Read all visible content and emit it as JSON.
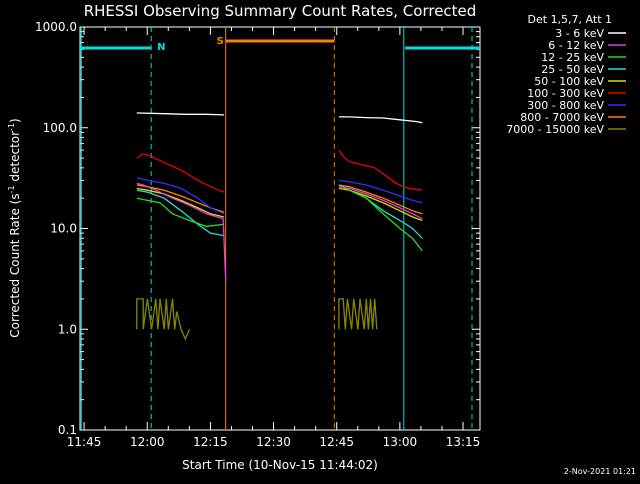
{
  "chart_data": {
    "type": "line",
    "title": "RHESSI Observing Summary Count Rates, Corrected",
    "ylabel_main": "Corrected Count Rate (s",
    "ylabel_sup": "-1",
    "ylabel_mid": " detector",
    "ylabel_sup2": "-1",
    "ylabel_end": ")",
    "xlabel": "Start Time (10-Nov-15 11:44:02)",
    "footer": "2-Nov-2021 01:21",
    "y_scale": "log",
    "ylim": [
      0.1,
      1000
    ],
    "xlim_minutes": [
      0,
      95
    ],
    "x_ticks": [
      {
        "m": 0.97,
        "label": "11:45"
      },
      {
        "m": 15.97,
        "label": "12:00"
      },
      {
        "m": 30.97,
        "label": "12:15"
      },
      {
        "m": 45.97,
        "label": "12:30"
      },
      {
        "m": 60.97,
        "label": "12:45"
      },
      {
        "m": 75.97,
        "label": "13:00"
      },
      {
        "m": 90.97,
        "label": "13:15"
      }
    ],
    "y_ticks": [
      {
        "v": 1000,
        "label": "1000.0"
      },
      {
        "v": 100,
        "label": "100.0"
      },
      {
        "v": 10,
        "label": "10.0"
      },
      {
        "v": 1,
        "label": "1.0"
      },
      {
        "v": 0.1,
        "label": "0.1"
      }
    ],
    "legend_header": "Det 1,5,7, Att 1",
    "series": [
      {
        "name": "3 - 6 keV",
        "color": "#ffffff",
        "segments": [
          [
            [
              13.5,
              140
            ],
            [
              14,
              140
            ],
            [
              20,
              138
            ],
            [
              25,
              136
            ],
            [
              30,
              136
            ],
            [
              34.2,
              134
            ]
          ],
          [
            [
              61.5,
              128
            ],
            [
              64,
              128
            ],
            [
              68,
              126
            ],
            [
              72,
              125
            ],
            [
              76,
              120
            ],
            [
              80,
              115
            ],
            [
              81.3,
              112
            ]
          ]
        ]
      },
      {
        "name": "6 - 12 keV",
        "color": "#e040e0",
        "segments": [
          [
            [
              13.5,
              28
            ],
            [
              15,
              27
            ],
            [
              18,
              24
            ],
            [
              22,
              20
            ],
            [
              26,
              17
            ],
            [
              30,
              14
            ],
            [
              34,
              12.5
            ],
            [
              34.6,
              3
            ]
          ],
          [
            [
              61.5,
              26
            ],
            [
              64,
              25
            ],
            [
              68,
              22
            ],
            [
              72,
              19
            ],
            [
              76,
              16
            ],
            [
              79,
              14
            ],
            [
              81.3,
              12.5
            ]
          ]
        ]
      },
      {
        "name": "12 - 25 keV",
        "color": "#20e020",
        "segments": [
          [
            [
              13.5,
              20
            ],
            [
              16,
              19
            ],
            [
              19,
              18
            ],
            [
              22,
              14
            ],
            [
              26,
              12
            ],
            [
              30,
              10.5
            ],
            [
              34.2,
              11
            ]
          ],
          [
            [
              61.5,
              27
            ],
            [
              64,
              24
            ],
            [
              68,
              20
            ],
            [
              72,
              14
            ],
            [
              76,
              10
            ],
            [
              79,
              8
            ],
            [
              81.3,
              6
            ]
          ]
        ]
      },
      {
        "name": "25 - 50 keV",
        "color": "#20e0e0",
        "segments": [
          [
            [
              13.5,
              24
            ],
            [
              16,
              23
            ],
            [
              20,
              20
            ],
            [
              24,
              15
            ],
            [
              28,
              11
            ],
            [
              31,
              9
            ],
            [
              34.2,
              8.5
            ]
          ],
          [
            [
              61.5,
              27
            ],
            [
              64,
              24
            ],
            [
              68,
              20
            ],
            [
              72,
              15
            ],
            [
              76,
              12
            ],
            [
              79,
              10
            ],
            [
              81.3,
              8
            ]
          ]
        ]
      },
      {
        "name": "50 - 100 keV",
        "color": "#e0e000",
        "segments": [
          [
            [
              13.5,
              25
            ],
            [
              16,
              24
            ],
            [
              20,
              22
            ],
            [
              24,
              19
            ],
            [
              28,
              16
            ],
            [
              31,
              14
            ],
            [
              34.2,
              13
            ]
          ],
          [
            [
              61.5,
              25
            ],
            [
              64,
              24
            ],
            [
              68,
              21
            ],
            [
              72,
              18
            ],
            [
              76,
              15
            ],
            [
              79,
              13
            ],
            [
              81.3,
              12
            ]
          ]
        ]
      },
      {
        "name": "100 - 300 keV",
        "color": "#ee0000",
        "segments": [
          [
            [
              13.5,
              50
            ],
            [
              15,
              55
            ],
            [
              17,
              52
            ],
            [
              20,
              45
            ],
            [
              24,
              38
            ],
            [
              28,
              30
            ],
            [
              31,
              26
            ],
            [
              33,
              24
            ],
            [
              34.2,
              23
            ]
          ],
          [
            [
              61.5,
              60
            ],
            [
              62.5,
              52
            ],
            [
              64,
              46
            ],
            [
              66,
              44
            ],
            [
              68,
              42
            ],
            [
              70,
              40
            ],
            [
              72,
              35
            ],
            [
              75,
              28
            ],
            [
              78,
              25
            ],
            [
              81.3,
              24
            ]
          ]
        ]
      },
      {
        "name": "300 - 800 keV",
        "color": "#3030ff",
        "segments": [
          [
            [
              13.5,
              32
            ],
            [
              16,
              30
            ],
            [
              20,
              28
            ],
            [
              24,
              25
            ],
            [
              28,
              20
            ],
            [
              31,
              16
            ],
            [
              34.2,
              14
            ]
          ],
          [
            [
              61.5,
              30
            ],
            [
              64,
              29
            ],
            [
              68,
              27
            ],
            [
              72,
              24
            ],
            [
              76,
              21
            ],
            [
              79,
              19
            ],
            [
              81.3,
              18
            ]
          ]
        ]
      },
      {
        "name": "800 - 7000 keV",
        "color": "#ff8800",
        "segments": [
          [
            [
              13.5,
              27
            ],
            [
              16,
              26
            ],
            [
              20,
              24
            ],
            [
              24,
              21
            ],
            [
              28,
              18
            ],
            [
              31,
              16
            ],
            [
              34.2,
              14.5
            ]
          ],
          [
            [
              61.5,
              27
            ],
            [
              64,
              26
            ],
            [
              68,
              23
            ],
            [
              72,
              20
            ],
            [
              76,
              17
            ],
            [
              79,
              15
            ],
            [
              81.3,
              14
            ]
          ]
        ]
      },
      {
        "name": "7000 - 15000 keV",
        "color": "#888800",
        "segments": [
          [
            [
              13.5,
              1.0
            ],
            [
              13.5,
              2.0
            ],
            [
              15,
              2.0
            ],
            [
              15,
              1.0
            ],
            [
              16,
              2.0
            ],
            [
              17,
              1.0
            ],
            [
              18,
              2.0
            ],
            [
              18.5,
              1.0
            ],
            [
              19,
              2.0
            ],
            [
              20,
              1.0
            ],
            [
              20.5,
              2.0
            ],
            [
              21,
              1.0
            ],
            [
              22,
              2.0
            ],
            [
              22.5,
              1.0
            ],
            [
              23,
              1.5
            ],
            [
              24,
              1.0
            ],
            [
              25,
              0.8
            ],
            [
              26,
              1.0
            ]
          ],
          [
            [
              61.5,
              1.0
            ],
            [
              61.5,
              2.0
            ],
            [
              62.5,
              2.0
            ],
            [
              63,
              1.0
            ],
            [
              63.5,
              2.0
            ],
            [
              64.5,
              1.0
            ],
            [
              65,
              2.0
            ],
            [
              66,
              1.0
            ],
            [
              66.5,
              2.0
            ],
            [
              67.5,
              1.0
            ],
            [
              68,
              2.0
            ],
            [
              68.5,
              1.0
            ],
            [
              69,
              2.0
            ],
            [
              69.5,
              1.0
            ],
            [
              70,
              2.0
            ],
            [
              70.5,
              1.0
            ]
          ]
        ]
      }
    ],
    "night_bars": [
      {
        "start": 0,
        "end": 16.8,
        "color": "#00e0e0"
      },
      {
        "start": 77.2,
        "end": 95,
        "color": "#00e0e0"
      }
    ],
    "saa_bars": [
      {
        "start": 34.6,
        "end": 60.4,
        "color": "#ff8000"
      }
    ],
    "markers": [
      {
        "m": 0.3,
        "color": "#00e0e0",
        "style": "solid"
      },
      {
        "m": 16.9,
        "color": "#00e0e0",
        "style": "dashed",
        "flag": "N"
      },
      {
        "m": 34.6,
        "color": "#ff8000",
        "style": "solid",
        "flag": "S"
      },
      {
        "m": 60.4,
        "color": "#ff8000",
        "style": "dashed"
      },
      {
        "m": 76.9,
        "color": "#00e0e0",
        "style": "solid"
      },
      {
        "m": 93.1,
        "color": "#00e0e0",
        "style": "dashed"
      }
    ]
  }
}
